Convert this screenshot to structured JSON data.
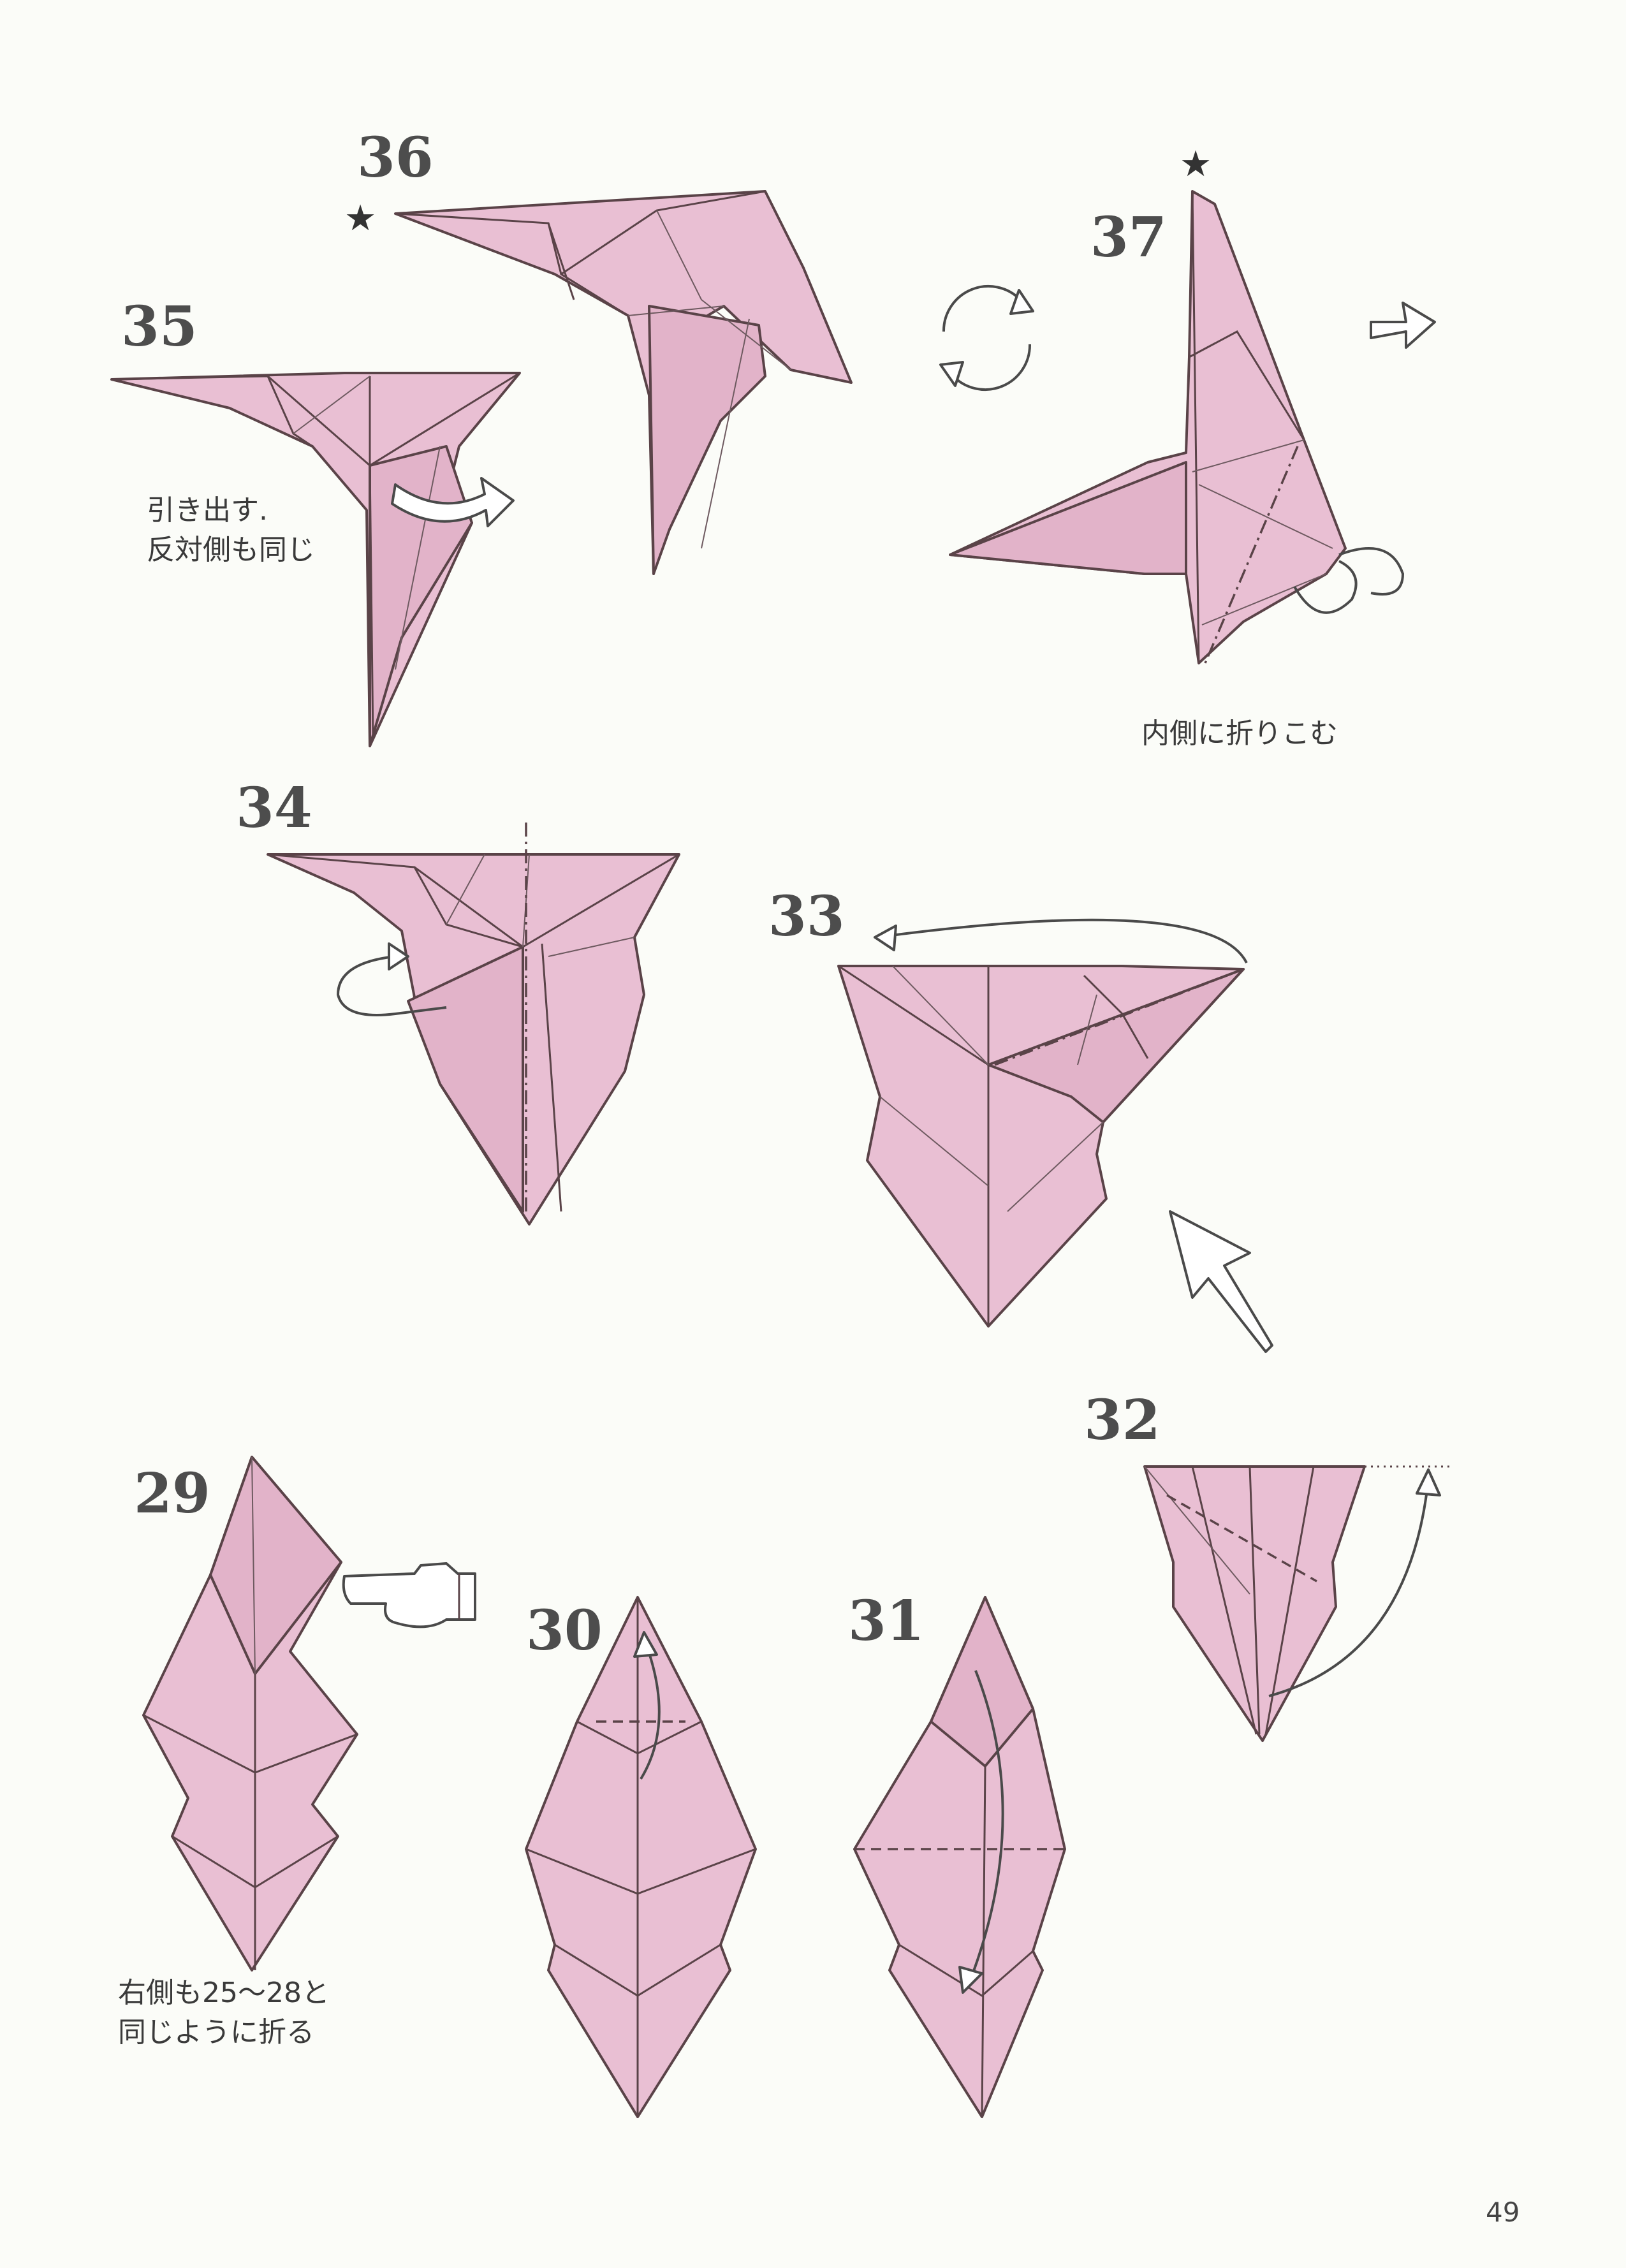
{
  "steps": {
    "s29": "29",
    "s30": "30",
    "s31": "31",
    "s32": "32",
    "s33": "33",
    "s34": "34",
    "s35": "35",
    "s36": "36",
    "s37": "37"
  },
  "notes": {
    "step35_line1": "引き出す.",
    "step35_line2": "反対側も同じ",
    "step37": "内側に折りこむ",
    "step29_line1": "右側も25～28と",
    "step29_line2": "同じように折る"
  },
  "marks": {
    "star36": "★",
    "star37": "★"
  },
  "page_number": "49",
  "colors": {
    "paper": "#e9bfd3",
    "line": "#5a4348",
    "text": "#4d4d4d"
  }
}
